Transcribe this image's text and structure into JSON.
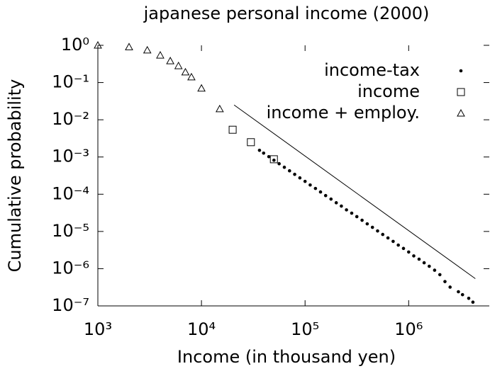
{
  "chart_data": {
    "type": "scatter",
    "title": "japanese personal income (2000)",
    "x_label": "Income (in thousand yen)",
    "y_label": "Cumulative probability",
    "log_x": true,
    "log_y": true,
    "xlim": [
      1000,
      6000000
    ],
    "ylim": [
      1e-07,
      1
    ],
    "xticks": [
      {
        "value": 1000,
        "label": "10³"
      },
      {
        "value": 10000,
        "label": "10⁴"
      },
      {
        "value": 100000,
        "label": "10⁵"
      },
      {
        "value": 1000000,
        "label": "10⁶"
      }
    ],
    "yticks": [
      {
        "value": 1,
        "label": "10⁰"
      },
      {
        "value": 0.1,
        "label": "10⁻¹"
      },
      {
        "value": 0.01,
        "label": "10⁻²"
      },
      {
        "value": 0.001,
        "label": "10⁻³"
      },
      {
        "value": 0.0001,
        "label": "10⁻⁴"
      },
      {
        "value": 1e-05,
        "label": "10⁻⁵"
      },
      {
        "value": 1e-06,
        "label": "10⁻⁶"
      },
      {
        "value": 1e-07,
        "label": "10⁻⁷"
      }
    ],
    "legend": "upper right",
    "series": [
      {
        "name": "income-tax",
        "marker": "dot",
        "color": "#000000",
        "x": [
          36300,
          39800,
          44700,
          50100,
          56200,
          63100,
          70800,
          79400,
          89100,
          100000,
          112000,
          126000,
          141000,
          158000,
          178000,
          200000,
          224000,
          251000,
          282000,
          316000,
          355000,
          398000,
          447000,
          501000,
          562000,
          631000,
          708000,
          794000,
          891000,
          1000000,
          1120000,
          1260000,
          1410000,
          1580000,
          1780000,
          2000000,
          2240000,
          2510000,
          3020000,
          3310000,
          3800000,
          4170000
        ],
        "values": [
          0.00151,
          0.00127,
          0.00102,
          0.00082,
          0.000659,
          0.00053,
          0.000426,
          0.000342,
          0.000275,
          0.000221,
          0.000177,
          0.000143,
          0.000115,
          9.2e-05,
          7.4e-05,
          5.9e-05,
          4.8e-05,
          3.8e-05,
          3.1e-05,
          2.5e-05,
          2e-05,
          1.6e-05,
          1.29e-05,
          1.03e-05,
          8.3e-06,
          6.7e-06,
          5.4e-06,
          4.3e-06,
          3.5e-06,
          2.8e-06,
          2.2e-06,
          1.8e-06,
          1.44e-06,
          1.16e-06,
          9.1e-07,
          6.9e-07,
          4.5e-07,
          3.2e-07,
          2.4e-07,
          2e-07,
          1.6e-07,
          1.26e-07
        ]
      },
      {
        "name": "income",
        "marker": "square",
        "color": "#000000",
        "x": [
          20000,
          30000,
          50000
        ],
        "values": [
          0.0054,
          0.0025,
          0.00087
        ]
      },
      {
        "name": "income + employ.",
        "marker": "triangle",
        "color": "#000000",
        "x": [
          1000,
          2000,
          3000,
          4000,
          5000,
          6000,
          7000,
          8000,
          10000,
          15000
        ],
        "values": [
          1,
          0.9,
          0.74,
          0.54,
          0.38,
          0.28,
          0.19,
          0.14,
          0.07,
          0.0195
        ]
      }
    ],
    "reference_line": {
      "x": [
        20650,
        4400000
      ],
      "values": [
        0.025,
        5.4e-07
      ],
      "color": "#000000"
    }
  }
}
